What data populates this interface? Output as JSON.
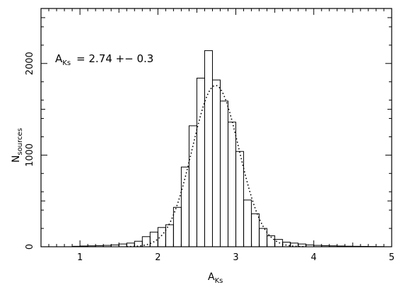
{
  "chart_data": {
    "type": "bar",
    "style": "histogram",
    "xlabel": "A",
    "xlabel_sub": "Ks",
    "ylabel": "N",
    "ylabel_sub": "sources",
    "xlim": [
      0.5,
      5.0
    ],
    "ylim": [
      0,
      2600
    ],
    "xticks": [
      1,
      2,
      3,
      4,
      5
    ],
    "yticks": [
      0,
      1000,
      2000
    ],
    "grid": false,
    "bin_width": 0.1,
    "bin_starts": [
      0.9,
      1.0,
      1.1,
      1.2,
      1.3,
      1.4,
      1.5,
      1.6,
      1.7,
      1.8,
      1.9,
      2.0,
      2.1,
      2.2,
      2.3,
      2.4,
      2.5,
      2.6,
      2.7,
      2.8,
      2.9,
      3.0,
      3.1,
      3.2,
      3.3,
      3.4,
      3.5,
      3.6,
      3.7,
      3.8,
      3.9,
      4.0,
      4.1,
      4.2,
      4.3,
      4.4,
      4.5,
      4.6,
      4.7,
      4.8
    ],
    "counts": [
      5,
      8,
      10,
      12,
      15,
      20,
      30,
      40,
      60,
      110,
      160,
      210,
      240,
      430,
      870,
      1320,
      1840,
      2140,
      1820,
      1590,
      1360,
      1040,
      510,
      360,
      200,
      120,
      80,
      50,
      40,
      30,
      20,
      15,
      12,
      10,
      8,
      6,
      5,
      4,
      3,
      2
    ],
    "fit": {
      "style": "dotted",
      "type": "gaussian",
      "mean": 2.74,
      "sigma": 0.3,
      "peak": 1760
    },
    "annotation": {
      "symbol": "A",
      "symbol_sub": "Ks",
      "text": "= 2.74 +− 0.3"
    }
  }
}
